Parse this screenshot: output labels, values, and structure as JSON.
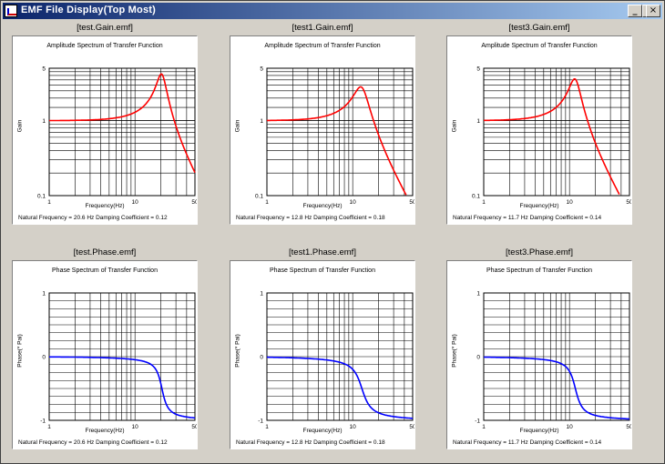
{
  "window": {
    "title": "EMF File Display(Top Most)",
    "minimize_glyph": "_",
    "maximize_glyph": "□",
    "close_glyph": "×"
  },
  "panels": [
    {
      "file": "[test.Gain.emf]",
      "chart_title": "Amplitude Spectrum of Transfer Function",
      "xlabel": "Frequency(Hz)",
      "ylabel": "Gain",
      "yticks": [
        "5",
        "1",
        "0.1"
      ],
      "xticks": [
        "1",
        "10",
        "50"
      ],
      "info": "Natural Frequency = 20.6  Hz     Damping Coefficient = 0.12"
    },
    {
      "file": "[test1.Gain.emf]",
      "chart_title": "Amplitude Spectrum of Transfer Function",
      "xlabel": "Frequency(Hz)",
      "ylabel": "Gain",
      "yticks": [
        "5",
        "1",
        "0.1"
      ],
      "xticks": [
        "1",
        "10",
        "50"
      ],
      "info": "Natural Frequency = 12.8  Hz     Damping Coefficient = 0.18"
    },
    {
      "file": "[test3.Gain.emf]",
      "chart_title": "Amplitude Spectrum of Transfer Function",
      "xlabel": "Frequency(Hz)",
      "ylabel": "Gain",
      "yticks": [
        "5",
        "1",
        "0.1"
      ],
      "xticks": [
        "1",
        "10",
        "50"
      ],
      "info": "Natural Frequency = 11.7  Hz     Damping Coefficient = 0.14"
    },
    {
      "file": "[test.Phase.emf]",
      "chart_title": "Phase Spectrum of Transfer Function",
      "xlabel": "Frequency(Hz)",
      "ylabel": "Phase(* Pai)",
      "yticks": [
        "1",
        "0",
        "-1"
      ],
      "xticks": [
        "1",
        "10",
        "50"
      ],
      "info": "Natural Frequency = 20.6  Hz     Damping Coefficient = 0.12"
    },
    {
      "file": "[test1.Phase.emf]",
      "chart_title": "Phase Spectrum of Transfer Function",
      "xlabel": "Frequency(Hz)",
      "ylabel": "Phase(* Pai)",
      "yticks": [
        "1",
        "0",
        "-1"
      ],
      "xticks": [
        "1",
        "10",
        "50"
      ],
      "info": "Natural Frequency = 12.8  Hz     Damping Coefficient = 0.18"
    },
    {
      "file": "[test3.Phase.emf]",
      "chart_title": "Phase Spectrum of Transfer Function",
      "xlabel": "Frequency(Hz)",
      "ylabel": "Phase(* Pai)",
      "yticks": [
        "1",
        "0",
        "-1"
      ],
      "xticks": [
        "1",
        "10",
        "50"
      ],
      "info": "Natural Frequency = 11.7  Hz     Damping Coefficient = 0.14"
    }
  ],
  "chart_data": [
    {
      "type": "line",
      "kind": "gain",
      "title": "Amplitude Spectrum of Transfer Function",
      "xlabel": "Frequency(Hz)",
      "ylabel": "Gain",
      "xscale": "log",
      "yscale": "log",
      "xlim": [
        1,
        50
      ],
      "ylim": [
        0.1,
        5
      ],
      "fn": 20.6,
      "zeta": 0.12,
      "color": "#ff0000"
    },
    {
      "type": "line",
      "kind": "gain",
      "title": "Amplitude Spectrum of Transfer Function",
      "xlabel": "Frequency(Hz)",
      "ylabel": "Gain",
      "xscale": "log",
      "yscale": "log",
      "xlim": [
        1,
        50
      ],
      "ylim": [
        0.1,
        5
      ],
      "fn": 12.8,
      "zeta": 0.18,
      "color": "#ff0000"
    },
    {
      "type": "line",
      "kind": "gain",
      "title": "Amplitude Spectrum of Transfer Function",
      "xlabel": "Frequency(Hz)",
      "ylabel": "Gain",
      "xscale": "log",
      "yscale": "log",
      "xlim": [
        1,
        50
      ],
      "ylim": [
        0.1,
        5
      ],
      "fn": 11.7,
      "zeta": 0.14,
      "color": "#ff0000"
    },
    {
      "type": "line",
      "kind": "phase",
      "title": "Phase Spectrum of Transfer Function",
      "xlabel": "Frequency(Hz)",
      "ylabel": "Phase(* Pai)",
      "xscale": "log",
      "xlim": [
        1,
        50
      ],
      "ylim": [
        -1,
        1
      ],
      "fn": 20.6,
      "zeta": 0.12,
      "color": "#0000ff"
    },
    {
      "type": "line",
      "kind": "phase",
      "title": "Phase Spectrum of Transfer Function",
      "xlabel": "Frequency(Hz)",
      "ylabel": "Phase(* Pai)",
      "xscale": "log",
      "xlim": [
        1,
        50
      ],
      "ylim": [
        -1,
        1
      ],
      "fn": 12.8,
      "zeta": 0.18,
      "color": "#0000ff"
    },
    {
      "type": "line",
      "kind": "phase",
      "title": "Phase Spectrum of Transfer Function",
      "xlabel": "Frequency(Hz)",
      "ylabel": "Phase(* Pai)",
      "xscale": "log",
      "xlim": [
        1,
        50
      ],
      "ylim": [
        -1,
        1
      ],
      "fn": 11.7,
      "zeta": 0.14,
      "color": "#0000ff"
    }
  ]
}
